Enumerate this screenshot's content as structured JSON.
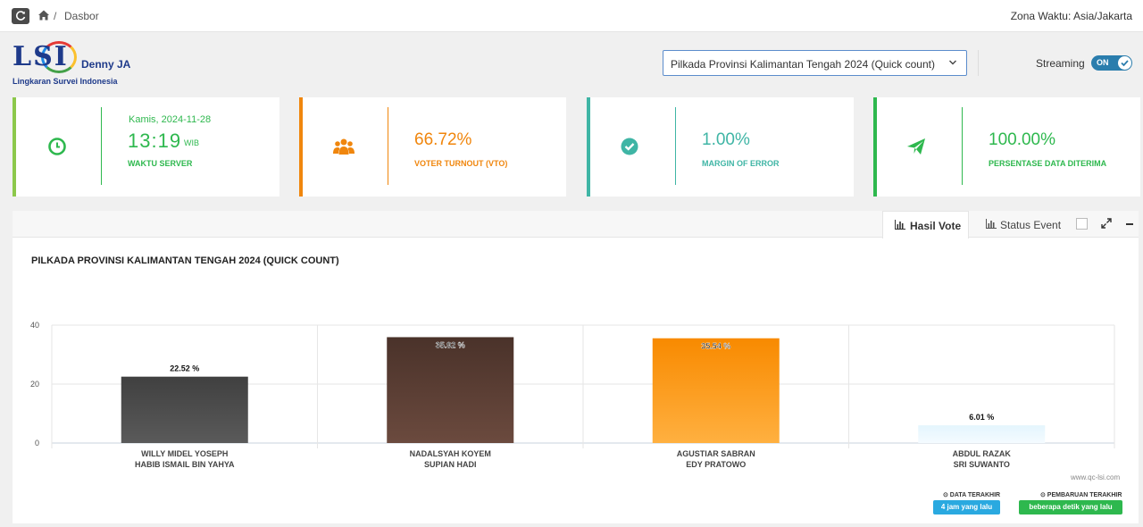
{
  "breadcrumb": {
    "current": "Dasbor",
    "separator": "/"
  },
  "header": {
    "timezone": "Zona Waktu: Asia/Jakarta"
  },
  "logo": {
    "main": "LSI",
    "author": "Denny JA",
    "subtitle": "Lingkaran Survei Indonesia"
  },
  "election_select": {
    "value": "Pilkada Provinsi Kalimantan Tengah 2024 (Quick count) (..."
  },
  "streaming": {
    "label": "Streaming",
    "state": "ON"
  },
  "stats": {
    "server_time": {
      "date": "Kamis, 2024-11-28",
      "time": "13:19",
      "tz": "WIB",
      "label": "WAKTU SERVER",
      "color": "#2eb84e"
    },
    "turnout": {
      "value": "66.72%",
      "label": "VOTER TURNOUT (VTO)",
      "color": "#f0860d"
    },
    "margin": {
      "value": "1.00%",
      "label": "MARGIN OF ERROR",
      "color": "#3fb5a5"
    },
    "received": {
      "value": "100.00%",
      "label": "PERSENTASE DATA DITERIMA",
      "color": "#2eb84e"
    }
  },
  "panel": {
    "tabs": [
      {
        "label": "Hasil Vote",
        "active": true
      },
      {
        "label": "Status Event",
        "active": false
      }
    ]
  },
  "chart_data": {
    "type": "bar",
    "title": "PILKADA PROVINSI KALIMANTAN TENGAH 2024 (QUICK COUNT)",
    "categories": [
      [
        "WILLY MIDEL YOSEPH",
        "HABIB ISMAIL BIN YAHYA"
      ],
      [
        "NADALSYAH KOYEM",
        "SUPIAN HADI"
      ],
      [
        "AGUSTIAR SABRAN",
        "EDY PRATOWO"
      ],
      [
        "ABDUL RAZAK",
        "SRI SUWANTO"
      ]
    ],
    "values": [
      22.52,
      35.92,
      35.54,
      6.01
    ],
    "value_labels": [
      "22.52 %",
      "35.92 %",
      "35.54 %",
      "6.01 %"
    ],
    "colors": [
      [
        "#404040",
        "#5a5a5a"
      ],
      [
        "#4a322a",
        "#6b4a3e"
      ],
      [
        "#f88a00",
        "#ffb040"
      ],
      [
        "#e4f5fd",
        "#f4fbff"
      ]
    ],
    "yticks": [
      0,
      20,
      40
    ],
    "ylim": [
      0,
      40
    ],
    "grid": true
  },
  "footer": {
    "watermark": "www.qc-lsi.com",
    "last_data_label": "⊙ DATA TERAKHIR",
    "last_data_value": "4 jam yang lalu",
    "last_update_label": "⊙ PEMBARUAN TERAKHIR",
    "last_update_value": "beberapa detik yang lalu"
  }
}
